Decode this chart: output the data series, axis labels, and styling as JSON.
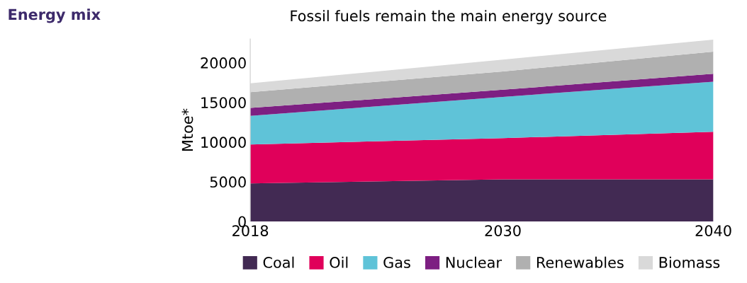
{
  "chart_data": {
    "type": "area",
    "stacked": true,
    "title": "Energy mix",
    "subtitle": "Fossil fuels remain the main energy source",
    "ylabel": "Mtoe*",
    "x": [
      2018,
      2030,
      2040
    ],
    "xlim": [
      2018,
      2040
    ],
    "xticks": [
      2018,
      2030,
      2040
    ],
    "ylim": [
      0,
      23000
    ],
    "yticks": [
      0,
      5000,
      10000,
      15000,
      20000
    ],
    "grid": false,
    "legend": "bottom",
    "series": [
      {
        "name": "Coal",
        "color": "#422a53",
        "values": [
          4800,
          5300,
          5300
        ]
      },
      {
        "name": "Oil",
        "color": "#e0005a",
        "values": [
          4900,
          5200,
          6000
        ]
      },
      {
        "name": "Gas",
        "color": "#5fc3d8",
        "values": [
          3600,
          5200,
          6300
        ]
      },
      {
        "name": "Nuclear",
        "color": "#7d1f82",
        "values": [
          1000,
          900,
          1000
        ]
      },
      {
        "name": "Renewables",
        "color": "#b0b0b0",
        "values": [
          2000,
          2300,
          2800
        ]
      },
      {
        "name": "Biomass",
        "color": "#d9d9d9",
        "values": [
          1100,
          1500,
          1500
        ]
      }
    ]
  }
}
